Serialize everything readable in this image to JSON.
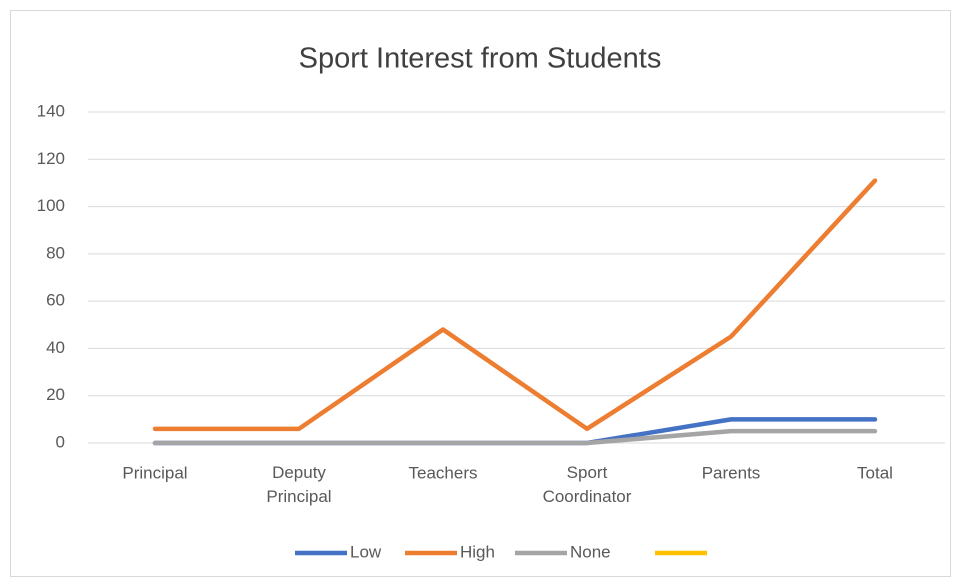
{
  "chart_data": {
    "type": "line",
    "title": "Sport Interest from Students",
    "categories": [
      "Principal",
      "Deputy Principal",
      "Teachers",
      "Sport Coordinator",
      "Parents",
      "Total"
    ],
    "series": [
      {
        "name": "Low",
        "color": "#4472c4",
        "values": [
          0,
          0,
          0,
          0,
          10,
          10
        ]
      },
      {
        "name": "High",
        "color": "#ed7d31",
        "values": [
          6,
          6,
          48,
          6,
          45,
          111
        ]
      },
      {
        "name": "None",
        "color": "#a5a5a5",
        "values": [
          0,
          0,
          0,
          0,
          5,
          5
        ]
      },
      {
        "name": null,
        "color": "#ffc000",
        "values": [
          null,
          null,
          null,
          null,
          null,
          null
        ]
      }
    ],
    "ylim": [
      0,
      140
    ],
    "yticks": [
      0,
      20,
      40,
      60,
      80,
      100,
      120,
      140
    ],
    "grid": true,
    "legend": "bottom"
  }
}
